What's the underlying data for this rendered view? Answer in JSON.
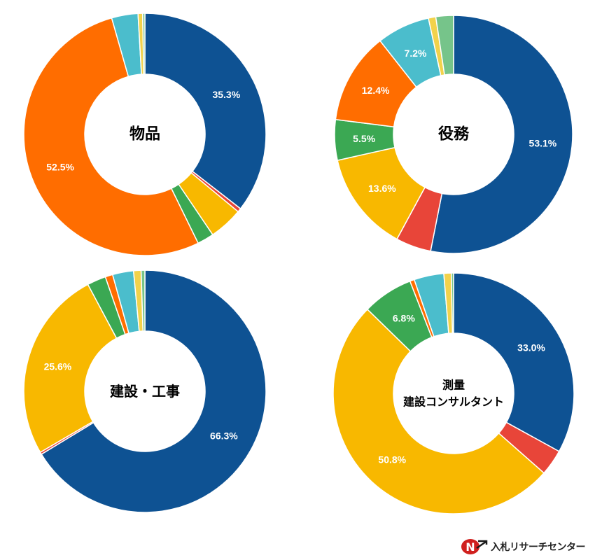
{
  "chart_data": [
    {
      "type": "pie",
      "center_label": [
        "物品"
      ],
      "values": [
        35.3,
        0.5,
        4.5,
        2.2,
        52.5,
        3.5,
        0.6,
        0.3
      ],
      "colors": [
        "#0E5293",
        "#E84539",
        "#F8B800",
        "#3BA853",
        "#FF6D00",
        "#4BBDCC",
        "#F2D24B",
        "#76C48A"
      ],
      "data_labels": [
        "35.3%",
        "",
        "",
        "",
        "52.5%",
        "",
        "",
        ""
      ]
    },
    {
      "type": "pie",
      "center_label": [
        "役務"
      ],
      "values": [
        53.1,
        4.8,
        13.6,
        5.5,
        12.4,
        7.2,
        1.0,
        2.4
      ],
      "colors": [
        "#0E5293",
        "#E84539",
        "#F8B800",
        "#3BA853",
        "#FF6D00",
        "#4BBDCC",
        "#F2D24B",
        "#76C48A"
      ],
      "data_labels": [
        "53.1%",
        "",
        "13.6%",
        "5.5%",
        "12.4%",
        "7.2%",
        "",
        ""
      ]
    },
    {
      "type": "pie",
      "center_label": [
        "建設・工事"
      ],
      "values": [
        66.3,
        0.3,
        25.6,
        2.5,
        1.0,
        2.8,
        1.0,
        0.5
      ],
      "colors": [
        "#0E5293",
        "#E84539",
        "#F8B800",
        "#3BA853",
        "#FF6D00",
        "#4BBDCC",
        "#F2D24B",
        "#76C48A"
      ],
      "data_labels": [
        "66.3%",
        "",
        "25.6%",
        "",
        "",
        "",
        "",
        ""
      ]
    },
    {
      "type": "pie",
      "center_label": [
        "測量",
        "建設コンサルタント"
      ],
      "values": [
        33.0,
        3.5,
        50.8,
        6.8,
        0.6,
        4.0,
        1.0,
        0.3
      ],
      "colors": [
        "#0E5293",
        "#E84539",
        "#F8B800",
        "#3BA853",
        "#FF6D00",
        "#4BBDCC",
        "#F2D24B",
        "#76C48A"
      ],
      "data_labels": [
        "33.0%",
        "",
        "50.8%",
        "6.8%",
        "",
        "",
        "",
        ""
      ]
    }
  ],
  "brand": {
    "text": "入札リサーチセンター",
    "icon": "nyusatsu-logo-icon",
    "logo_colors": [
      "#D0201E",
      "#1A1A1A"
    ]
  }
}
